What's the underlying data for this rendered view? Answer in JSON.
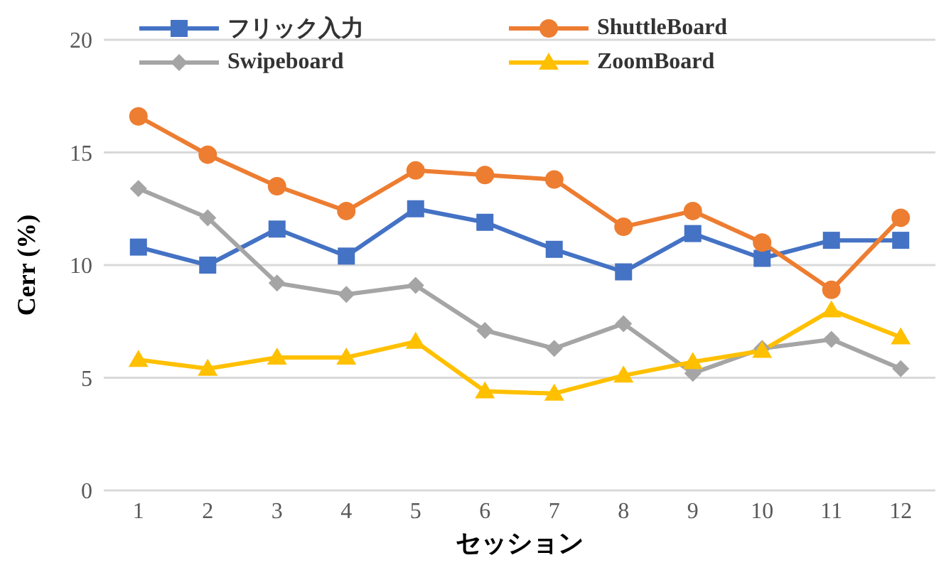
{
  "chart_data": {
    "type": "line",
    "xlabel": "セッション",
    "ylabel": "Cerr (%)",
    "x": [
      1,
      2,
      3,
      4,
      5,
      6,
      7,
      8,
      9,
      10,
      11,
      12
    ],
    "xlim": [
      0.5,
      12.5
    ],
    "xticks": [
      1,
      2,
      3,
      4,
      5,
      6,
      7,
      8,
      9,
      10,
      11,
      12
    ],
    "series": [
      {
        "name": "フリック入力",
        "color": "#4472c4",
        "marker": "square",
        "values": [
          10.8,
          10.0,
          11.6,
          10.4,
          12.5,
          11.9,
          10.7,
          9.7,
          11.4,
          10.3,
          11.1,
          11.1
        ]
      },
      {
        "name": "ShuttleBoard",
        "color": "#ed7d31",
        "marker": "circle",
        "values": [
          16.6,
          14.9,
          13.5,
          12.4,
          14.2,
          14.0,
          13.8,
          11.7,
          12.4,
          11.0,
          8.9,
          12.1
        ]
      },
      {
        "name": "Swipeboard",
        "color": "#a5a5a5",
        "marker": "diamond",
        "values": [
          13.4,
          12.1,
          9.2,
          8.7,
          9.1,
          7.1,
          6.3,
          7.4,
          5.2,
          6.3,
          6.7,
          5.4
        ]
      },
      {
        "name": "ZoomBoard",
        "color": "#ffc000",
        "marker": "triangle",
        "values": [
          5.8,
          5.4,
          5.9,
          5.9,
          6.6,
          4.4,
          4.3,
          5.1,
          5.7,
          6.2,
          8.0,
          6.8
        ]
      }
    ],
    "ylim": [
      0,
      20
    ],
    "yticks": [
      0,
      5,
      10,
      15,
      20
    ],
    "grid": "y",
    "legend": "top",
    "line_style": "solid"
  }
}
